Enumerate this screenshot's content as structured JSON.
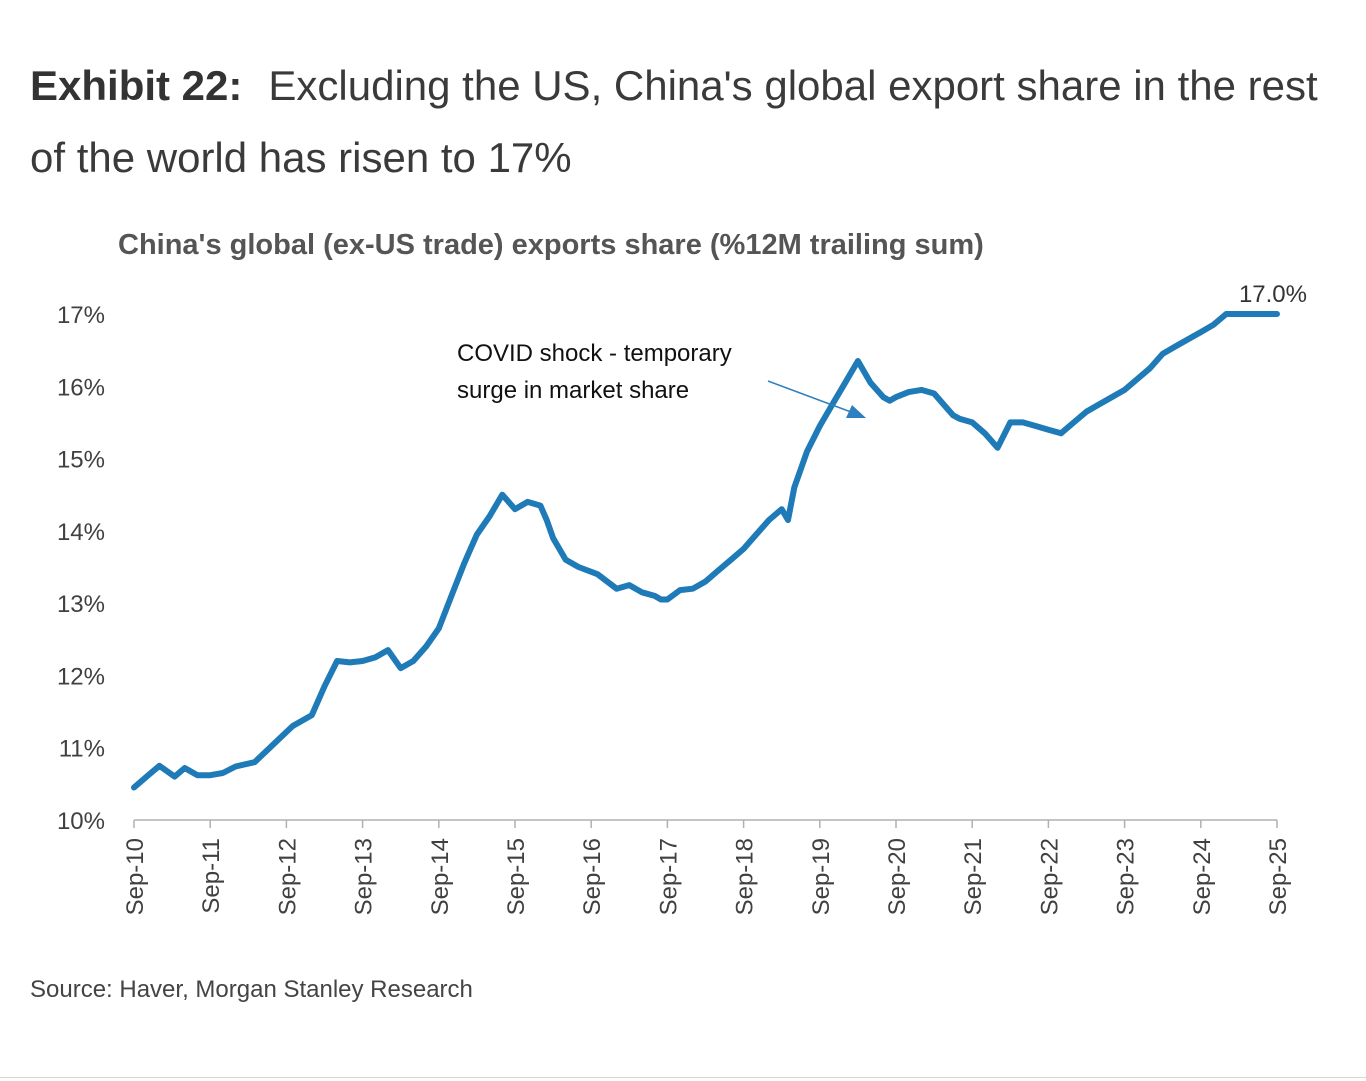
{
  "exhibit": {
    "label": "Exhibit 22:",
    "title": "Excluding the US, China's global export share in the rest of the world has risen to 17%"
  },
  "source": "Source: Haver, Morgan Stanley Research",
  "colors": {
    "line": "#1f7ab8",
    "axis": "#b0b0b0",
    "arrow": "#2e7fc0"
  },
  "chart_data": {
    "type": "line",
    "title": "China's global (ex-US trade) exports share (%12M trailing sum)",
    "xlabel": "",
    "ylabel": "",
    "ylim": [
      10,
      17
    ],
    "y_ticks": [
      10,
      11,
      12,
      13,
      14,
      15,
      16,
      17
    ],
    "y_tick_labels": [
      "10%",
      "11%",
      "12%",
      "13%",
      "14%",
      "15%",
      "16%",
      "17%"
    ],
    "x_range": [
      2010.667,
      2025.667
    ],
    "x_ticks": [
      2010.667,
      2011.667,
      2012.667,
      2013.667,
      2014.667,
      2015.667,
      2016.667,
      2017.667,
      2018.667,
      2019.667,
      2020.667,
      2021.667,
      2022.667,
      2023.667,
      2024.667,
      2025.667
    ],
    "x_tick_labels": [
      "Sep-10",
      "Sep-11",
      "Sep-12",
      "Sep-13",
      "Sep-14",
      "Sep-15",
      "Sep-16",
      "Sep-17",
      "Sep-18",
      "Sep-19",
      "Sep-20",
      "Sep-21",
      "Sep-22",
      "Sep-23",
      "Sep-24",
      "Sep-25"
    ],
    "grid": false,
    "legend": "none",
    "series": [
      {
        "name": "China's global (ex-US trade) exports share",
        "x": [
          2010.667,
          2010.833,
          2011.0,
          2011.2,
          2011.333,
          2011.5,
          2011.667,
          2011.833,
          2012.0,
          2012.25,
          2012.5,
          2012.75,
          2013.0,
          2013.167,
          2013.333,
          2013.5,
          2013.667,
          2013.833,
          2014.0,
          2014.167,
          2014.333,
          2014.5,
          2014.667,
          2014.833,
          2015.0,
          2015.083,
          2015.167,
          2015.333,
          2015.5,
          2015.667,
          2015.833,
          2016.0,
          2016.083,
          2016.167,
          2016.333,
          2016.5,
          2016.75,
          2017.0,
          2017.167,
          2017.333,
          2017.5,
          2017.583,
          2017.667,
          2017.833,
          2018.0,
          2018.167,
          2018.333,
          2018.5,
          2018.667,
          2018.833,
          2019.0,
          2019.167,
          2019.25,
          2019.333,
          2019.5,
          2019.667,
          2019.833,
          2020.0,
          2020.167,
          2020.333,
          2020.5,
          2020.583,
          2020.667,
          2020.833,
          2021.0,
          2021.167,
          2021.333,
          2021.417,
          2021.5,
          2021.667,
          2021.833,
          2022.0,
          2022.167,
          2022.333,
          2022.5,
          2022.667,
          2022.833,
          2023.0,
          2023.167,
          2023.333,
          2023.5,
          2023.667,
          2023.833,
          2024.0,
          2024.167,
          2024.333,
          2024.5,
          2024.667,
          2024.833,
          2025.0,
          2025.167,
          2025.333,
          2025.5,
          2025.667
        ],
        "values": [
          10.45,
          10.6,
          10.75,
          10.6,
          10.72,
          10.62,
          10.62,
          10.65,
          10.74,
          10.8,
          11.05,
          11.3,
          11.45,
          11.85,
          12.2,
          12.18,
          12.2,
          12.25,
          12.35,
          12.1,
          12.2,
          12.4,
          12.65,
          13.1,
          13.55,
          13.75,
          13.95,
          14.2,
          14.5,
          14.3,
          14.4,
          14.35,
          14.15,
          13.9,
          13.6,
          13.5,
          13.4,
          13.2,
          13.25,
          13.15,
          13.1,
          13.05,
          13.05,
          13.18,
          13.2,
          13.3,
          13.45,
          13.6,
          13.75,
          13.95,
          14.15,
          14.3,
          14.15,
          14.6,
          15.1,
          15.45,
          15.75,
          16.05,
          16.35,
          16.05,
          15.85,
          15.8,
          15.85,
          15.92,
          15.95,
          15.9,
          15.7,
          15.6,
          15.55,
          15.5,
          15.35,
          15.15,
          15.5,
          15.5,
          15.45,
          15.4,
          15.35,
          15.5,
          15.65,
          15.75,
          15.85,
          15.95,
          16.1,
          16.25,
          16.45,
          16.55,
          16.65,
          16.75,
          16.85,
          17.0,
          17.0,
          17.0,
          17.0,
          17.0
        ]
      }
    ],
    "end_label": "17.0%",
    "annotation": {
      "lines": [
        "COVID shock - temporary",
        "surge in market share"
      ],
      "points_to_x": 2020.6
    }
  }
}
